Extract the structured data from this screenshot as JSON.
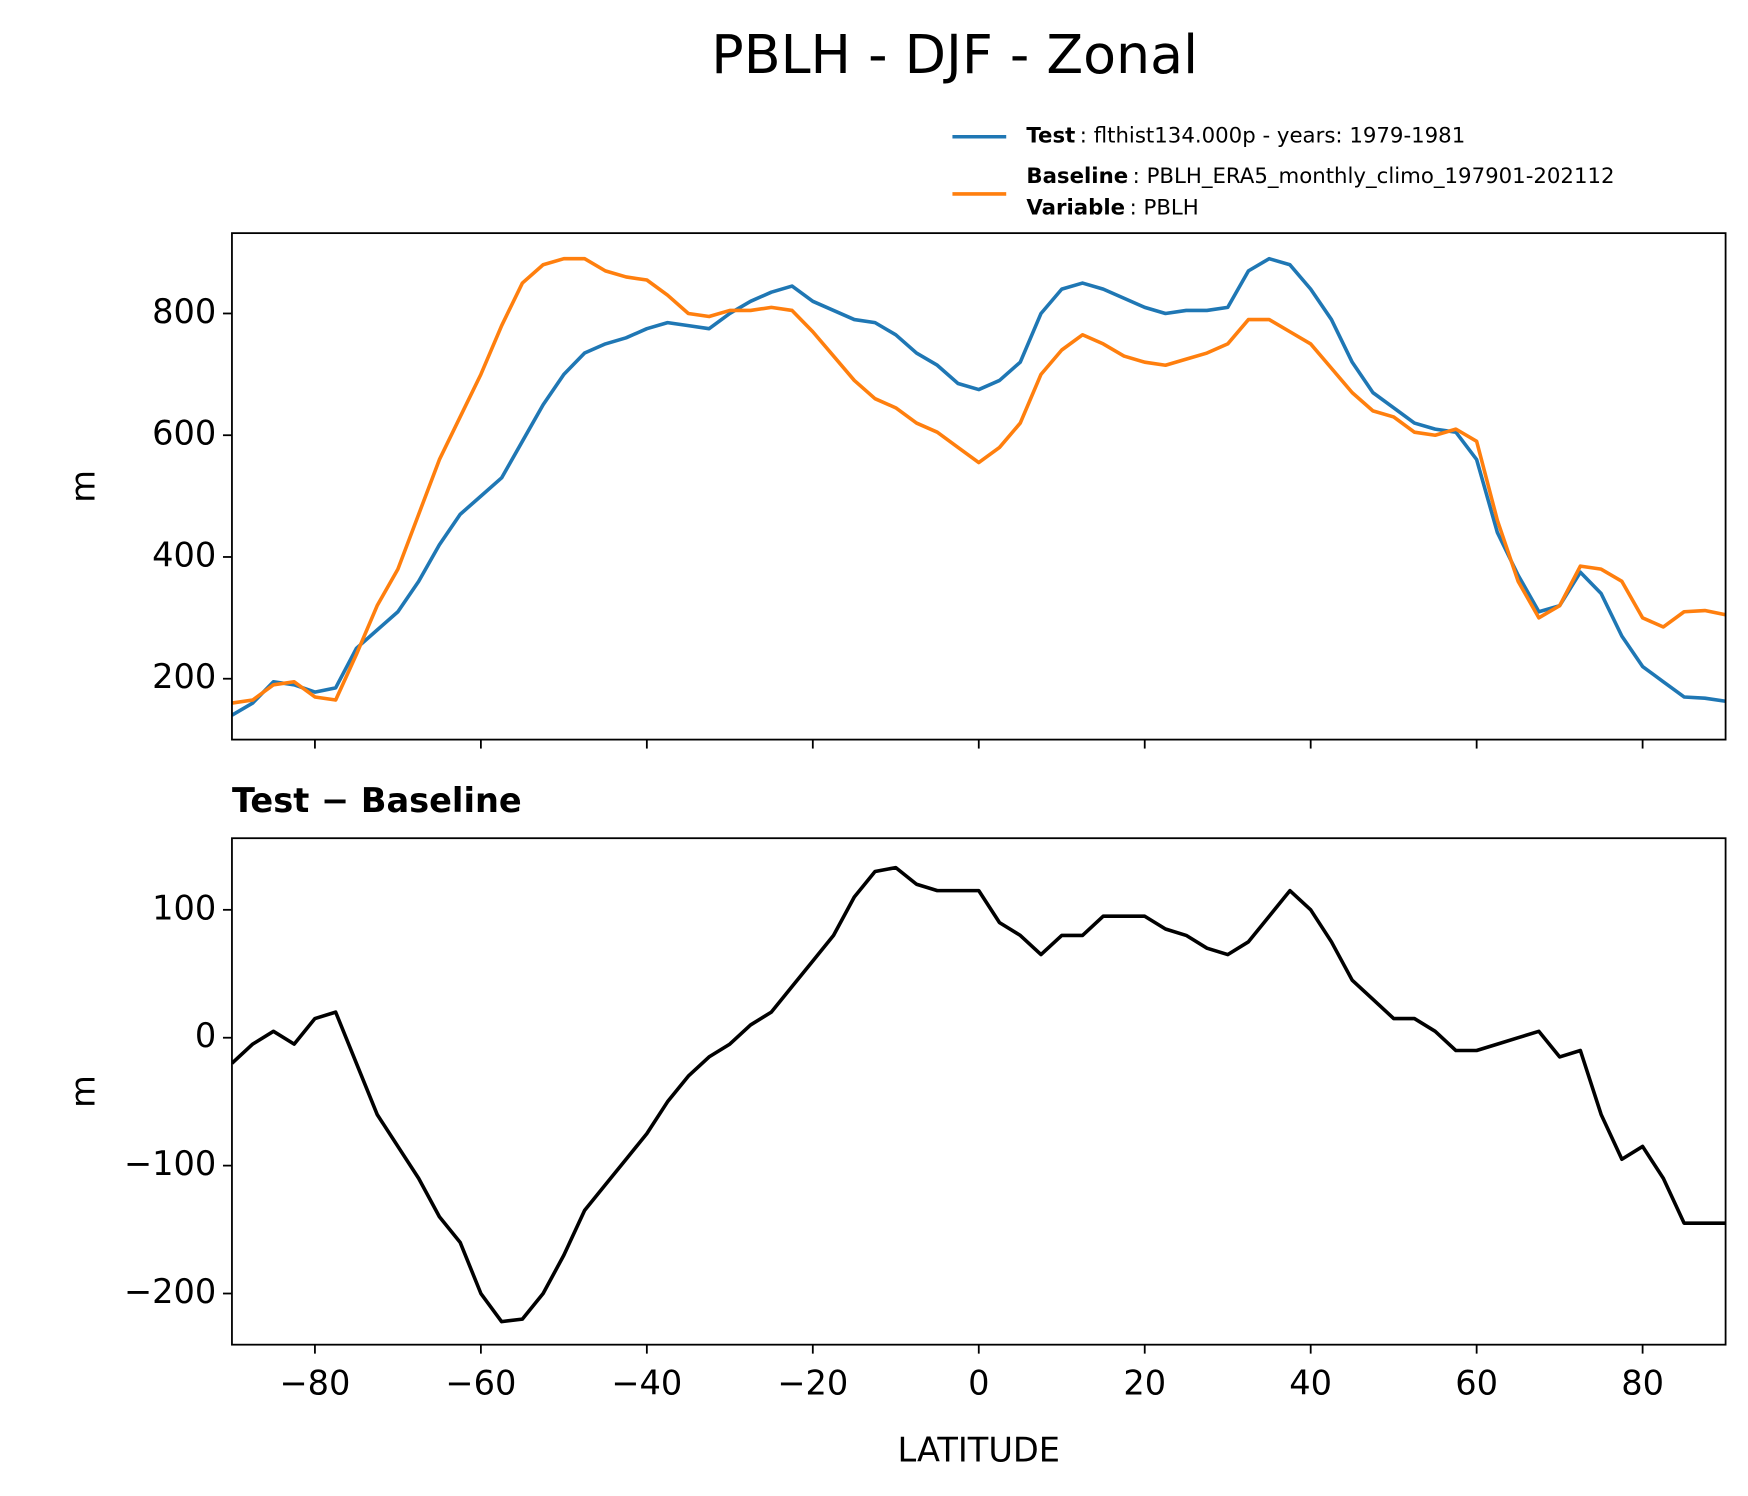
{
  "title": "PBLH - DJF - Zonal",
  "chart_data": [
    {
      "type": "line",
      "ylabel": "m",
      "x": [
        -90,
        -87.5,
        -85,
        -82.5,
        -80,
        -77.5,
        -75,
        -72.5,
        -70,
        -67.5,
        -65,
        -62.5,
        -60,
        -57.5,
        -55,
        -52.5,
        -50,
        -47.5,
        -45,
        -42.5,
        -40,
        -37.5,
        -35,
        -32.5,
        -30,
        -27.5,
        -25,
        -22.5,
        -20,
        -17.5,
        -15,
        -12.5,
        -10,
        -7.5,
        -5,
        -2.5,
        0,
        2.5,
        5,
        7.5,
        10,
        12.5,
        15,
        17.5,
        20,
        22.5,
        25,
        27.5,
        30,
        32.5,
        35,
        37.5,
        40,
        42.5,
        45,
        47.5,
        50,
        52.5,
        55,
        57.5,
        60,
        62.5,
        65,
        67.5,
        70,
        72.5,
        75,
        77.5,
        80,
        82.5,
        85,
        87.5,
        90
      ],
      "series": [
        {
          "name": "Test",
          "label": ": flthist134.000p - years: 1979-1981",
          "color": "#1f77b4",
          "values": [
            140,
            160,
            195,
            190,
            178,
            185,
            250,
            280,
            310,
            360,
            420,
            470,
            500,
            530,
            590,
            650,
            700,
            735,
            750,
            760,
            775,
            785,
            780,
            775,
            800,
            820,
            835,
            845,
            820,
            805,
            790,
            785,
            765,
            735,
            715,
            685,
            675,
            690,
            720,
            800,
            840,
            850,
            840,
            825,
            810,
            800,
            805,
            805,
            810,
            870,
            890,
            880,
            840,
            790,
            720,
            670,
            645,
            620,
            610,
            605,
            560,
            440,
            370,
            310,
            320,
            375,
            340,
            270,
            220,
            195,
            170,
            168,
            163
          ]
        },
        {
          "name": "Baseline",
          "label": ": PBLH_ERA5_monthly_climo_197901-202112",
          "color": "#ff7f0e",
          "values": [
            160,
            165,
            190,
            195,
            170,
            165,
            240,
            320,
            380,
            470,
            560,
            630,
            700,
            780,
            850,
            880,
            890,
            890,
            870,
            860,
            855,
            830,
            800,
            795,
            805,
            805,
            810,
            805,
            770,
            730,
            690,
            660,
            645,
            620,
            605,
            580,
            555,
            580,
            620,
            700,
            740,
            765,
            750,
            730,
            720,
            715,
            725,
            735,
            750,
            790,
            790,
            770,
            750,
            710,
            670,
            640,
            630,
            605,
            600,
            610,
            590,
            460,
            360,
            300,
            320,
            385,
            380,
            360,
            300,
            285,
            310,
            312,
            305
          ]
        }
      ],
      "legend_extra": {
        "name": "Variable",
        "label": ": PBLH"
      },
      "xlim": [
        -90,
        90
      ],
      "xticks": [
        {
          "value": -80,
          "label": "−80"
        },
        {
          "value": -60,
          "label": "−60"
        },
        {
          "value": -40,
          "label": "−40"
        },
        {
          "value": -20,
          "label": "−20"
        },
        0,
        20,
        40,
        60,
        80
      ],
      "ylim": [
        100,
        932
      ],
      "yticks": [
        200,
        400,
        600,
        800
      ]
    },
    {
      "type": "line",
      "title": "Test − Baseline",
      "xlabel": "LATITUDE",
      "ylabel": "m",
      "x": [
        -90,
        -87.5,
        -85,
        -82.5,
        -80,
        -77.5,
        -75,
        -72.5,
        -70,
        -67.5,
        -65,
        -62.5,
        -60,
        -57.5,
        -55,
        -52.5,
        -50,
        -47.5,
        -45,
        -42.5,
        -40,
        -37.5,
        -35,
        -32.5,
        -30,
        -27.5,
        -25,
        -22.5,
        -20,
        -17.5,
        -15,
        -12.5,
        -10,
        -7.5,
        -5,
        -2.5,
        0,
        2.5,
        5,
        7.5,
        10,
        12.5,
        15,
        17.5,
        20,
        22.5,
        25,
        27.5,
        30,
        32.5,
        35,
        37.5,
        40,
        42.5,
        45,
        47.5,
        50,
        52.5,
        55,
        57.5,
        60,
        62.5,
        65,
        67.5,
        70,
        72.5,
        75,
        77.5,
        80,
        82.5,
        85,
        87.5,
        90
      ],
      "series": [
        {
          "color": "#000000",
          "values": [
            -20,
            -5,
            5,
            -5,
            15,
            20,
            -20,
            -60,
            -85,
            -110,
            -140,
            -160,
            -200,
            -222,
            -220,
            -200,
            -170,
            -135,
            -115,
            -95,
            -75,
            -50,
            -30,
            -15,
            -5,
            10,
            20,
            40,
            60,
            80,
            110,
            130,
            133,
            120,
            115,
            115,
            115,
            90,
            80,
            65,
            80,
            80,
            95,
            95,
            95,
            85,
            80,
            70,
            65,
            75,
            95,
            115,
            100,
            75,
            45,
            30,
            15,
            15,
            5,
            -10,
            -10,
            -5,
            0,
            5,
            -15,
            -10,
            -60,
            -95,
            -85,
            -110,
            -145,
            -145,
            -145
          ]
        }
      ],
      "xlim": [
        -90,
        90
      ],
      "xticks": [
        {
          "value": -80,
          "label": "−80"
        },
        {
          "value": -60,
          "label": "−60"
        },
        {
          "value": -40,
          "label": "−40"
        },
        {
          "value": -20,
          "label": "−20"
        },
        0,
        20,
        40,
        60,
        80
      ],
      "ylim": [
        -240,
        156
      ],
      "yticks": [
        {
          "value": -200,
          "label": "−200"
        },
        {
          "value": -100,
          "label": "−100"
        },
        0,
        100
      ]
    }
  ]
}
